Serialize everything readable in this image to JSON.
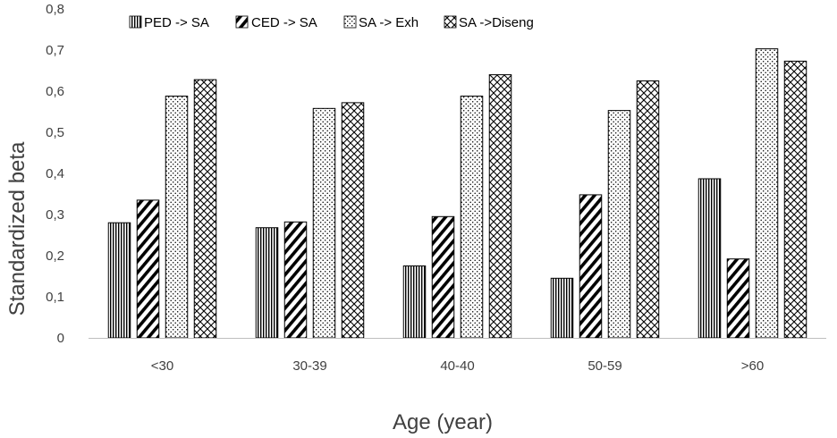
{
  "chart_data": {
    "type": "bar",
    "title": "",
    "xlabel": "Age (year)",
    "ylabel": "Standardized beta",
    "ylim": [
      0,
      0.8
    ],
    "yticks": [
      "0",
      "0,1",
      "0,2",
      "0,3",
      "0,4",
      "0,5",
      "0,6",
      "0,7",
      "0,8"
    ],
    "categories": [
      "<30",
      "30-39",
      "40-40",
      "50-59",
      ">60"
    ],
    "legend_position": "top",
    "grid": false,
    "series": [
      {
        "name": "PED -> SA",
        "pattern": "vertical-lines",
        "values": [
          0.28,
          0.268,
          0.175,
          0.145,
          0.387
        ]
      },
      {
        "name": "CED -> SA",
        "pattern": "diagonal-lines",
        "values": [
          0.335,
          0.282,
          0.295,
          0.348,
          0.192
        ]
      },
      {
        "name": "SA -> Exh",
        "pattern": "dots",
        "values": [
          0.588,
          0.558,
          0.588,
          0.553,
          0.703
        ]
      },
      {
        "name": "SA ->Diseng",
        "pattern": "diamond-grid",
        "values": [
          0.628,
          0.572,
          0.64,
          0.625,
          0.673
        ]
      }
    ],
    "colors": {
      "ink": "#000000",
      "text": "#404040",
      "axis": "#bfbfbf"
    }
  }
}
